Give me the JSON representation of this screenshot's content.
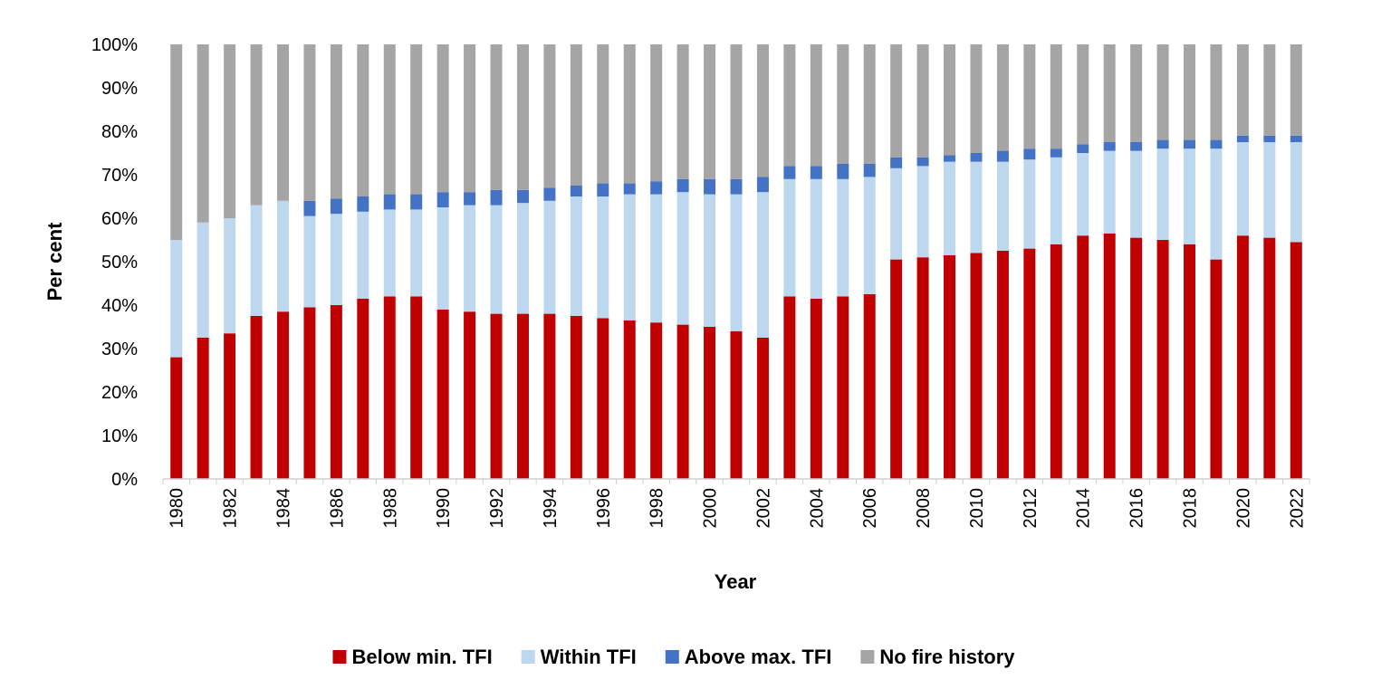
{
  "chart_data": {
    "type": "bar",
    "stacked": true,
    "percent_stacked": true,
    "xlabel": "Year",
    "ylabel": "Per cent",
    "ylim": [
      0,
      100
    ],
    "y_ticks": [
      "0%",
      "10%",
      "20%",
      "30%",
      "40%",
      "50%",
      "60%",
      "70%",
      "80%",
      "90%",
      "100%"
    ],
    "x_tick_labels": [
      "1980",
      "1982",
      "1984",
      "1986",
      "1988",
      "1990",
      "1992",
      "1994",
      "1996",
      "1998",
      "2000",
      "2002",
      "2004",
      "2006",
      "2008",
      "2010",
      "2012",
      "2014",
      "2016",
      "2018",
      "2020",
      "2022"
    ],
    "grid": false,
    "legend_position": "bottom",
    "categories": [
      "1980",
      "1981",
      "1982",
      "1983",
      "1984",
      "1985",
      "1986",
      "1987",
      "1988",
      "1989",
      "1990",
      "1991",
      "1992",
      "1993",
      "1994",
      "1995",
      "1996",
      "1997",
      "1998",
      "1999",
      "2000",
      "2001",
      "2002",
      "2003",
      "2004",
      "2005",
      "2006",
      "2007",
      "2008",
      "2009",
      "2010",
      "2011",
      "2012",
      "2013",
      "2014",
      "2015",
      "2016",
      "2017",
      "2018",
      "2019",
      "2020",
      "2021",
      "2022"
    ],
    "series": [
      {
        "name": "Below min. TFI",
        "color": "#c00000",
        "values": [
          28,
          32.5,
          33.5,
          37.5,
          38.5,
          39.5,
          40,
          41.5,
          42,
          42,
          39,
          38.5,
          38,
          38,
          38,
          37.5,
          37,
          36.5,
          36,
          35.5,
          35,
          34,
          32.5,
          42,
          41.5,
          42,
          42.5,
          50.5,
          51,
          51.5,
          52,
          52.5,
          53,
          54,
          56,
          56.5,
          55.5,
          55,
          54,
          50.5,
          56,
          55.5,
          54.5
        ]
      },
      {
        "name": "Within TFI",
        "color": "#bdd7ee",
        "values": [
          27,
          26.5,
          26.5,
          25.5,
          25.5,
          21,
          21,
          20,
          20,
          20,
          23.5,
          24.5,
          25,
          25.5,
          26,
          27.5,
          28,
          29,
          29.5,
          30.5,
          30.5,
          31.5,
          33.5,
          27,
          27.5,
          27,
          27,
          21,
          21,
          21.5,
          21,
          20.5,
          20.5,
          20,
          19,
          19,
          20,
          21,
          22,
          25.5,
          21.5,
          22,
          23
        ]
      },
      {
        "name": "Above max. TFI",
        "color": "#4472c4",
        "values": [
          0,
          0,
          0,
          0,
          0,
          3.5,
          3.5,
          3.5,
          3.5,
          3.5,
          3.5,
          3,
          3.5,
          3,
          3,
          2.5,
          3,
          2.5,
          3,
          3,
          3.5,
          3.5,
          3.5,
          3,
          3,
          3.5,
          3,
          2.5,
          2,
          1.5,
          2,
          2.5,
          2.5,
          2,
          2,
          2,
          2,
          2,
          2,
          2,
          1.5,
          1.5,
          1.5
        ]
      },
      {
        "name": "No fire history",
        "color": "#a5a5a5",
        "values": [
          45,
          41,
          40,
          37,
          36,
          36,
          35.5,
          35,
          34.5,
          34.5,
          34,
          34,
          33.5,
          33.5,
          33,
          32.5,
          32,
          32,
          31.5,
          31,
          31,
          31,
          30.5,
          28,
          28,
          27.5,
          27.5,
          26,
          26,
          25.5,
          25,
          24.5,
          24,
          24,
          23,
          22.5,
          22.5,
          22,
          22,
          22,
          21,
          21,
          21
        ]
      }
    ]
  }
}
